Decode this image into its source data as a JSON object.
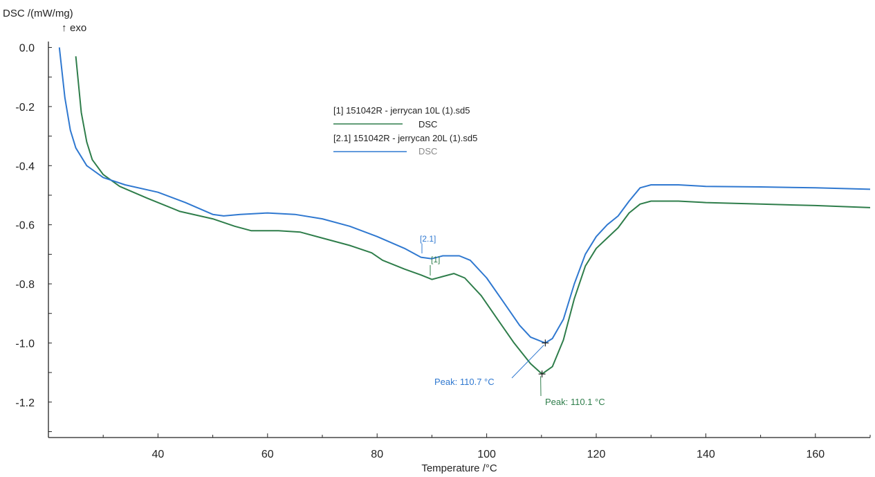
{
  "chart_data": {
    "type": "line",
    "ylabel": "DSC /(mW/mg)",
    "exo_label": "exo",
    "xlabel": "Temperature /°C",
    "xlim": [
      20,
      170
    ],
    "ylim": [
      -1.32,
      0.02
    ],
    "x_ticks": [
      40,
      60,
      80,
      100,
      120,
      140,
      160
    ],
    "y_ticks": [
      0.0,
      -0.2,
      -0.4,
      -0.6,
      -0.8,
      -1.0,
      -1.2
    ],
    "y_tick_labels": [
      "0.0",
      "-0.2",
      "-0.4",
      "-0.6",
      "-0.8",
      "-1.0",
      "-1.2"
    ],
    "grid": false,
    "legend_placement": "top-center",
    "colors": {
      "series1": "#2e7d4a",
      "series2": "#2f78d0"
    },
    "series": [
      {
        "name": "[1] 151042R - jerrycan 10L (1).sd5",
        "legend_sub": "DSC",
        "tag": "[1]",
        "x": [
          25,
          26,
          27,
          28,
          30,
          33,
          38,
          44,
          50,
          54,
          57,
          62,
          66,
          70,
          75,
          79,
          81,
          85,
          88,
          90,
          92,
          94,
          96,
          99,
          102,
          105,
          108,
          110.1,
          112,
          114,
          116,
          118,
          120,
          122,
          124,
          126,
          128,
          130,
          135,
          140,
          150,
          160,
          170
        ],
        "y": [
          -0.03,
          -0.22,
          -0.32,
          -0.38,
          -0.43,
          -0.47,
          -0.51,
          -0.555,
          -0.58,
          -0.605,
          -0.62,
          -0.62,
          -0.625,
          -0.645,
          -0.67,
          -0.695,
          -0.72,
          -0.75,
          -0.77,
          -0.785,
          -0.775,
          -0.765,
          -0.78,
          -0.84,
          -0.92,
          -1.0,
          -1.07,
          -1.105,
          -1.08,
          -0.99,
          -0.85,
          -0.74,
          -0.68,
          -0.645,
          -0.61,
          -0.56,
          -0.53,
          -0.52,
          -0.52,
          -0.525,
          -0.53,
          -0.535,
          -0.542
        ]
      },
      {
        "name": "[2.1] 151042R - jerrycan 20L (1).sd5",
        "legend_sub": "DSC",
        "tag": "[2.1]",
        "x": [
          22,
          23,
          24,
          25,
          27,
          30,
          34,
          40,
          45,
          50,
          52,
          55,
          60,
          65,
          70,
          75,
          80,
          85,
          88,
          90,
          92,
          95,
          97,
          100,
          103,
          106,
          108,
          110.7,
          112,
          114,
          116,
          118,
          120,
          122,
          124,
          126,
          128,
          130,
          135,
          140,
          150,
          160,
          170
        ],
        "y": [
          0.0,
          -0.17,
          -0.28,
          -0.34,
          -0.4,
          -0.44,
          -0.465,
          -0.49,
          -0.525,
          -0.565,
          -0.57,
          -0.565,
          -0.56,
          -0.565,
          -0.58,
          -0.605,
          -0.64,
          -0.68,
          -0.71,
          -0.715,
          -0.705,
          -0.705,
          -0.72,
          -0.78,
          -0.86,
          -0.94,
          -0.98,
          -1.0,
          -0.985,
          -0.92,
          -0.8,
          -0.7,
          -0.64,
          -0.6,
          -0.57,
          -0.52,
          -0.475,
          -0.465,
          -0.465,
          -0.47,
          -0.472,
          -0.475,
          -0.48
        ]
      }
    ],
    "annotations": [
      {
        "series": 0,
        "text": "Peak: 110.1 °C",
        "x": 110.1,
        "y": -1.105
      },
      {
        "series": 1,
        "text": "Peak: 110.7 °C",
        "x": 110.7,
        "y": -1.0
      }
    ]
  }
}
